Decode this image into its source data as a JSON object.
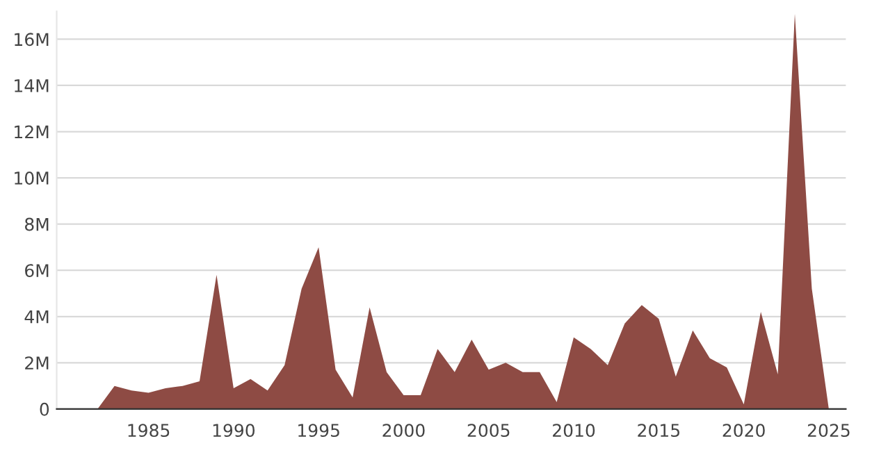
{
  "chart_data": {
    "type": "area",
    "color": "#8e4b44",
    "x": [
      1982,
      1983,
      1984,
      1985,
      1986,
      1987,
      1988,
      1989,
      1990,
      1991,
      1992,
      1993,
      1994,
      1995,
      1996,
      1997,
      1998,
      1999,
      2000,
      2001,
      2002,
      2003,
      2004,
      2005,
      2006,
      2007,
      2008,
      2009,
      2010,
      2011,
      2012,
      2013,
      2014,
      2015,
      2016,
      2017,
      2018,
      2019,
      2020,
      2021,
      2022,
      2023,
      2024,
      2025
    ],
    "values": [
      0,
      1.0,
      0.8,
      0.7,
      0.9,
      1.0,
      1.2,
      5.8,
      0.9,
      1.3,
      0.8,
      1.9,
      5.2,
      7.0,
      1.7,
      0.5,
      4.4,
      1.6,
      0.6,
      0.6,
      2.6,
      1.6,
      3.0,
      1.7,
      2.0,
      1.6,
      1.6,
      0.3,
      3.1,
      2.6,
      1.9,
      3.7,
      4.5,
      3.9,
      1.4,
      3.4,
      2.2,
      1.8,
      0.2,
      4.2,
      1.5,
      17.1,
      5.2,
      0
    ],
    "xlim": [
      1979.6,
      2026
    ],
    "xticks": [
      1985,
      1990,
      1995,
      2000,
      2005,
      2010,
      2015,
      2020,
      2025
    ],
    "ylim": [
      0,
      17.2
    ],
    "yticks": [
      0,
      {
        "value": 2,
        "label": "2M"
      },
      {
        "value": 4,
        "label": "4M"
      },
      {
        "value": 6,
        "label": "6M"
      },
      {
        "value": 8,
        "label": "8M"
      },
      {
        "value": 10,
        "label": "10M"
      },
      {
        "value": 12,
        "label": "12M"
      },
      {
        "value": 14,
        "label": "14M"
      },
      {
        "value": 16,
        "label": "16M"
      }
    ],
    "grid": "y"
  }
}
